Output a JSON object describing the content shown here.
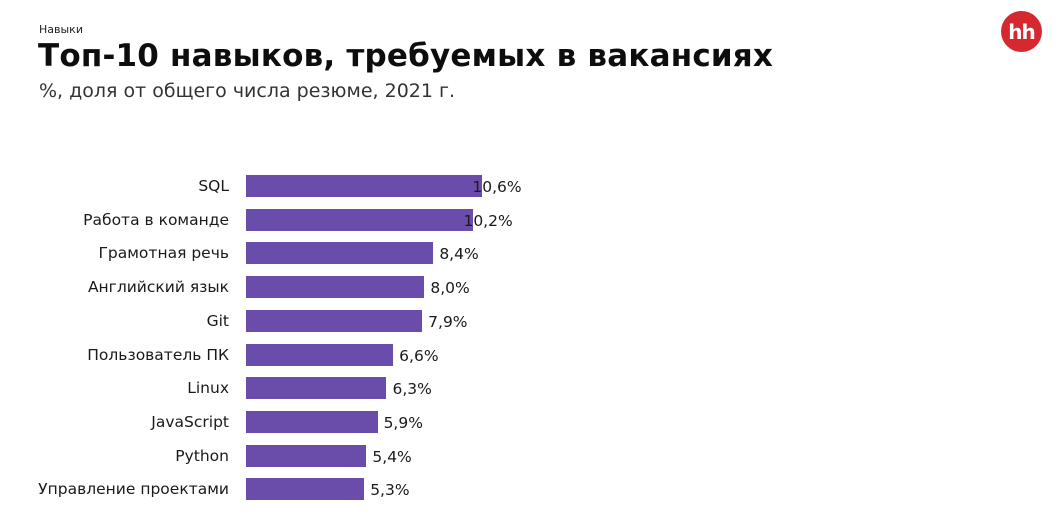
{
  "header": {
    "kicker": "Навыки",
    "title": "Топ-10 навыков, требуемых в вакансиях",
    "subtitle": "%, доля от общего числа резюме, 2021 г.",
    "logo_text": "hh",
    "logo_color": "#d6282f"
  },
  "chart_data": {
    "type": "bar",
    "orientation": "horizontal",
    "title": "Топ-10 навыков, требуемых в вакансиях",
    "subtitle": "%, доля от общего числа резюме, 2021 г.",
    "xlabel": "",
    "ylabel": "",
    "categories": [
      "SQL",
      "Работа в команде",
      "Грамотная речь",
      "Английский язык",
      "Git",
      "Пользователь ПК",
      "Linux",
      "JavaScript",
      "Python",
      "Управление проектами"
    ],
    "values": [
      10.6,
      10.2,
      8.4,
      8.0,
      7.9,
      6.6,
      6.3,
      5.9,
      5.4,
      5.3
    ],
    "value_labels": [
      "10,6%",
      "10,2%",
      "8,4%",
      "8,0%",
      "7,9%",
      "6,6%",
      "6,3%",
      "5,9%",
      "5,4%",
      "5,3%"
    ],
    "unit": "%",
    "bar_color": "#6a4caa",
    "grid": false,
    "legend": null
  }
}
